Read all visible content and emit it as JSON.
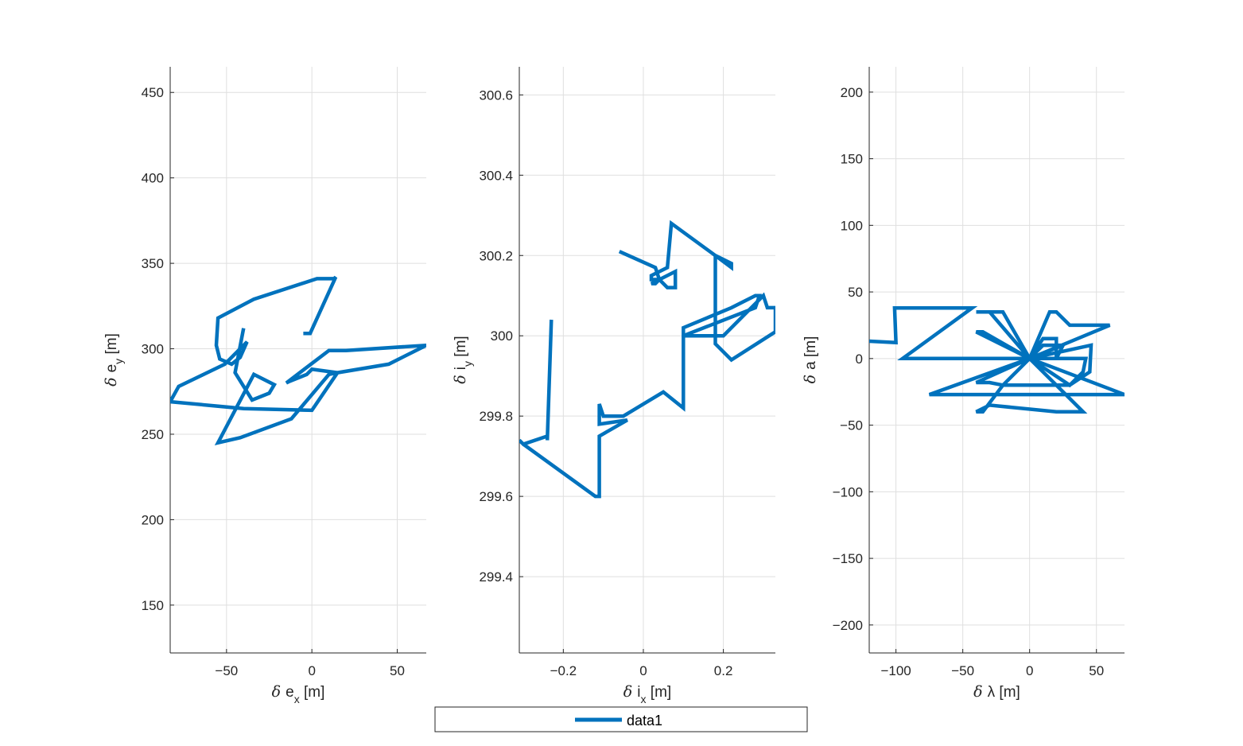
{
  "colors": {
    "series": "#0072bd",
    "grid": "#dfdfdf",
    "axis": "#262626"
  },
  "legend": {
    "entries": [
      "data1"
    ],
    "placement": "bottom-center"
  },
  "chart_data": [
    {
      "type": "line",
      "xlabel_sym": "δ",
      "xlabel_var": "e",
      "xlabel_sub": "x",
      "xlabel_unit": "[m]",
      "ylabel_sym": "δ",
      "ylabel_var": "e",
      "ylabel_sub": "y",
      "ylabel_unit": "[m]",
      "xlim": [
        -83,
        67
      ],
      "ylim": [
        122,
        465
      ],
      "xticks": [
        -50,
        0,
        50
      ],
      "yticks": [
        150,
        200,
        250,
        300,
        350,
        400,
        450
      ],
      "grid": true,
      "series": [
        {
          "x": [
            -5,
            -1,
            14,
            13,
            3,
            -34,
            -55,
            -56,
            -54,
            -47,
            -42,
            -38,
            -51,
            -78,
            -83,
            -40,
            0,
            15,
            45,
            67,
            20,
            10,
            -15,
            -13,
            -3,
            0,
            15,
            10,
            -12,
            -42,
            -55,
            -34,
            -22,
            -25,
            -35,
            -45,
            -40
          ],
          "y": [
            309,
            309,
            342,
            341,
            341,
            329,
            318,
            302,
            294,
            291,
            295,
            304,
            291,
            278,
            269,
            265,
            264,
            286,
            291,
            302,
            299,
            299,
            280,
            281,
            285,
            288,
            286,
            285,
            259,
            248,
            245,
            285,
            279,
            274,
            270,
            286,
            312
          ]
        }
      ]
    },
    {
      "type": "line",
      "xlabel_sym": "δ",
      "xlabel_var": "i",
      "xlabel_sub": "x",
      "xlabel_unit": "[m]",
      "ylabel_sym": "δ",
      "ylabel_var": "i",
      "ylabel_sub": "y",
      "ylabel_unit": "[m]",
      "xlim": [
        -0.31,
        0.33
      ],
      "ylim": [
        299.21,
        300.67
      ],
      "xticks": [
        -0.2,
        0,
        0.2
      ],
      "yticks": [
        299.4,
        299.6,
        299.8,
        300,
        300.2,
        300.4,
        300.6
      ],
      "grid": true,
      "series": [
        {
          "x": [
            -0.23,
            -0.24,
            -0.24,
            -0.3,
            -0.31,
            -0.3,
            -0.12,
            -0.11,
            -0.11,
            -0.04,
            -0.11,
            -0.11,
            -0.1,
            -0.05,
            0.05,
            0.1,
            0.1,
            0.1,
            0.22,
            0.28,
            0.29,
            0.28,
            0.28,
            0.1,
            0.1,
            0.1,
            0.2,
            0.3,
            0.31,
            0.33,
            0.33,
            0.22,
            0.18,
            0.18,
            0.22,
            0.22,
            0.18,
            0.07,
            0.06,
            0.06,
            0.02,
            0.02,
            0.04,
            0.03,
            0.02,
            0.08,
            0.08,
            0.06,
            0.04,
            0.03,
            -0.06
          ],
          "y": [
            300.04,
            299.74,
            299.75,
            299.73,
            299.74,
            299.73,
            299.6,
            299.6,
            299.75,
            299.79,
            299.78,
            299.83,
            299.8,
            299.8,
            299.86,
            299.82,
            300.0,
            300.02,
            300.07,
            300.1,
            300.1,
            300.07,
            300.07,
            300.0,
            300.0,
            300.0,
            300.0,
            300.1,
            300.07,
            300.07,
            300.01,
            299.94,
            299.98,
            300.2,
            300.18,
            300.17,
            300.2,
            300.28,
            300.17,
            300.17,
            300.15,
            300.14,
            300.14,
            300.13,
            300.13,
            300.16,
            300.12,
            300.12,
            300.14,
            300.17,
            300.21
          ]
        }
      ]
    },
    {
      "type": "line",
      "xlabel_sym": "δ",
      "xlabel_var": "λ",
      "xlabel_sub": "",
      "xlabel_unit": "[m]",
      "ylabel_sym": "δ",
      "ylabel_var": "a",
      "ylabel_sub": "",
      "ylabel_unit": "[m]",
      "xlim": [
        -120,
        71
      ],
      "ylim": [
        -221,
        219
      ],
      "xticks": [
        -100,
        -50,
        0,
        50
      ],
      "yticks": [
        -200,
        -150,
        -100,
        -50,
        0,
        50,
        100,
        150,
        200
      ],
      "grid": true,
      "series": [
        {
          "x": [
            -120,
            -100,
            -101,
            -43,
            -95,
            -35,
            -10,
            0,
            -20,
            -35,
            -40,
            -30,
            20,
            25,
            40,
            0,
            -30,
            -40,
            -20,
            0,
            -75,
            71,
            0,
            -40,
            -30,
            -20,
            0,
            5,
            25,
            30,
            45,
            46,
            0,
            -40,
            -35,
            0,
            60,
            30,
            20,
            15,
            0,
            10,
            25,
            0,
            25,
            20,
            0,
            42,
            40,
            30,
            0,
            10,
            20,
            20
          ],
          "y": [
            13,
            12,
            38,
            38,
            0,
            0,
            0,
            0,
            -20,
            -40,
            -40,
            -35,
            -40,
            -40,
            -40,
            0,
            35,
            35,
            35,
            0,
            -27,
            -27,
            0,
            -18,
            -18,
            -20,
            -20,
            -20,
            -20,
            -20,
            -10,
            10,
            0,
            20,
            20,
            0,
            25,
            25,
            35,
            35,
            0,
            10,
            10,
            0,
            10,
            0,
            0,
            0,
            -10,
            -20,
            0,
            15,
            15,
            0
          ]
        }
      ]
    }
  ]
}
